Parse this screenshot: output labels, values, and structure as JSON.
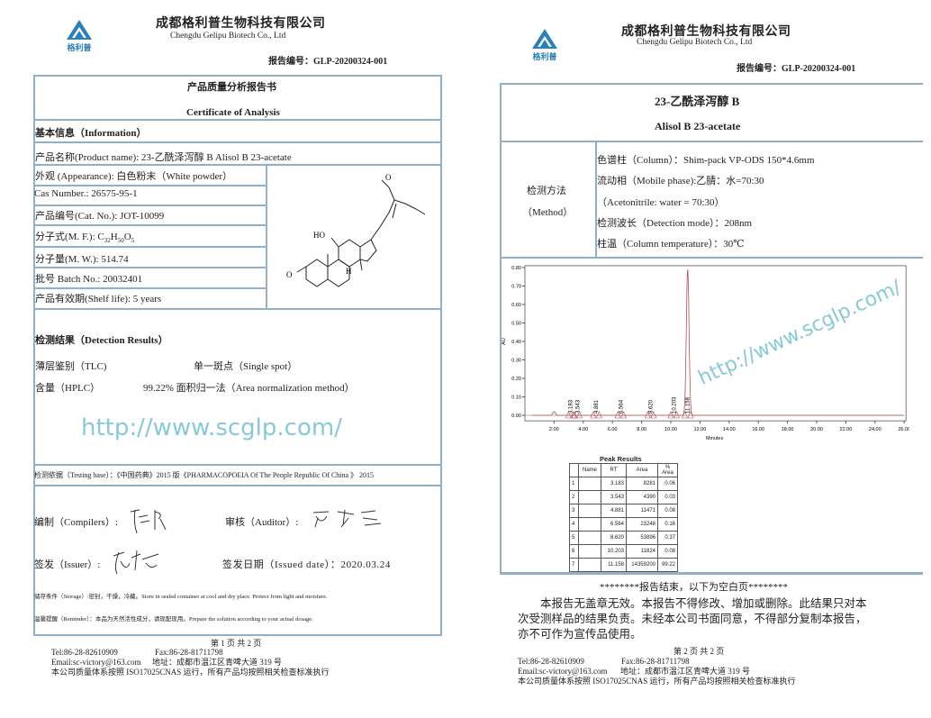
{
  "company": {
    "name_cn": "成都格利普生物科技有限公司",
    "name_en": "Chengdu Gelipu    Biotech Co., Ltd",
    "logo_text": "格利普"
  },
  "report_no": "报告编号：GLP-20200324-001",
  "watermark": "http://www.scglp.com/",
  "page1": {
    "title_cn": "产品质量分析报告书",
    "title_en": "Certificate of Analysis",
    "info_heading": "基本信息（Information）",
    "product_name": "产品名称(Product name):   23-乙酰泽泻醇 B     Alisol B 23-acetate",
    "appearance": "外观 (Appearance): 白色粉末（White powder）",
    "cas": "Cas Number.: 26575-95-1",
    "cat_no": "产品编号(Cat. No.): JOT-10099",
    "mf_prefix": "分子式(M. F.): C",
    "mf_c": "32",
    "mf_h": "50",
    "mf_o": "5",
    "mw": "分子量(M. W.): 514.74",
    "batch": "批号 Batch No.:  20032401",
    "shelf": "产品有效期(Shelf life): 5 years",
    "structure_labels": {
      "ho": "HO",
      "o_keto": "O",
      "h": "H",
      "o": "O"
    },
    "results_heading": "检测结果（Detection    Results）",
    "tlc_label": "薄层鉴别（TLC)",
    "tlc_value": "单一斑点（Single spot）",
    "hplc_label": "含量（HPLC）",
    "hplc_value": "99.22%  面积归一法（Area normalization method）",
    "testing_base": "检测依据（Testing base）：《中国药典》2015 版《PHARMACOPOEIA Of The People Republic Of China 》 2015",
    "compilers": "编制（Compilers）:",
    "auditor": "审核（Auditor）:",
    "issuer": "签发（Issuer）:",
    "issued_date": "签发日期（Issued date）：2020.03.24",
    "storage": "储存条件（Storage）:密封，干燥，冷藏。Store in sealed container at cool and dry place. Protect from light and moisture.",
    "reminder": "温馨提醒（Reminder）：本品为天然活性成分，请现配现用。Prepare the solution according to your actual dosage.",
    "page_no": "第 1 页 共 2 页"
  },
  "page2": {
    "title_cn": "23-乙酰泽泻醇 B",
    "title_en": "Alisol B 23-acetate",
    "method_label_cn": "检测方法",
    "method_label_en": "（Method）",
    "column": "色谱柱（Column）：Shim-pack VP-ODS 150*4.6mm",
    "mobile_phase": "流动相（Mobile phase):乙腈：水=70:30",
    "mobile_phase_en": "（Acetonitrile: water = 70:30）",
    "detection": "检测波长（Detection mode）：208nm",
    "temperature": "柱温（Column temperature）：30℃",
    "end_line": "********报告结束，以下为空白页********",
    "disclaimer": "本报告无盖章无效。本报告不得修改、增加或删除。此结果只对本次受测样品的结果负责。未经本公司书面同意，不得部分复制本报告，亦不可作为宣传品使用。",
    "page_no": "第 2 页 共 2 页"
  },
  "footer": {
    "tel": "Tel:86-28-82610909",
    "fax": "Fax:86-28-81711798",
    "email": "Email:sc-victory@163.com",
    "address": "地址：成都市温江区青啤大道 319 号",
    "iso": "本公司质量体系按照 ISO17025CNAS 运行，所有产品均按照相关检查标准执行"
  },
  "chart_data": {
    "type": "line",
    "xlabel": "Minutes",
    "ylabel": "AU",
    "xlim": [
      0,
      26
    ],
    "ylim": [
      0,
      0.8
    ],
    "xticks": [
      "2.00",
      "4.00",
      "6.00",
      "8.00",
      "10.00",
      "12.00",
      "14.00",
      "16.00",
      "18.00",
      "20.00",
      "22.00",
      "24.00",
      "26.00"
    ],
    "yticks": [
      "0.00",
      "0.10",
      "0.20",
      "0.30",
      "0.40",
      "0.50",
      "0.60",
      "0.70",
      "0.80"
    ],
    "line_color": "#b05050",
    "peak_labels": [
      "3.183",
      "3.543",
      "4.881",
      "6.564",
      "8.620",
      "10.203",
      "11.158"
    ],
    "main_peak": {
      "rt": 11.158,
      "height": 0.79
    },
    "peak_table": {
      "title": "Peak Results",
      "headers": [
        "",
        "Name",
        "RT",
        "Area",
        "% Area"
      ],
      "rows": [
        [
          "1",
          "",
          "3.183",
          "8281",
          "0.06"
        ],
        [
          "2",
          "",
          "3.543",
          "4390",
          "0.03"
        ],
        [
          "3",
          "",
          "4.881",
          "11471",
          "0.08"
        ],
        [
          "4",
          "",
          "6.564",
          "23248",
          "0.16"
        ],
        [
          "5",
          "",
          "8.620",
          "53896",
          "0.37"
        ],
        [
          "6",
          "",
          "10.203",
          "11824",
          "0.08"
        ],
        [
          "7",
          "",
          "11.158",
          "14359200",
          "99.22"
        ]
      ]
    }
  }
}
